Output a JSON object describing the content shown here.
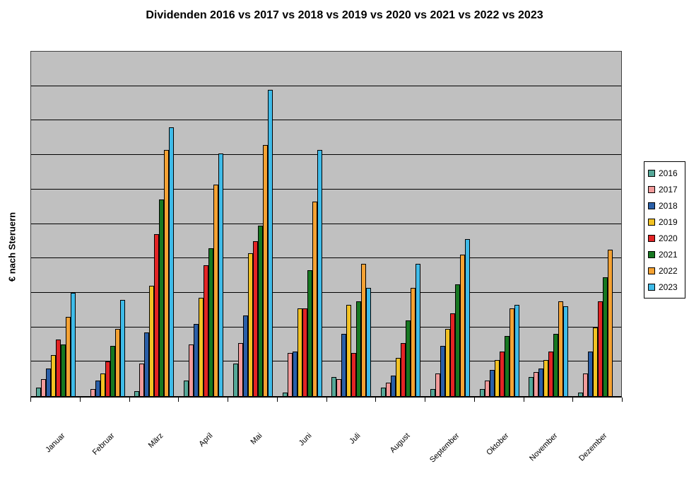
{
  "chart_data": {
    "type": "bar",
    "title": "Dividenden 2016 vs 2017 vs 2018 vs 2019 vs 2020 vs 2021 vs 2022 vs 2023",
    "ylabel": "€ nach Steruern",
    "xlabel": "",
    "categories": [
      "Januar",
      "Februar",
      "März",
      "April",
      "Mai",
      "Juni",
      "Juli",
      "August",
      "September",
      "Oktober",
      "November",
      "Dezember"
    ],
    "series": [
      {
        "name": "2016",
        "color": "#55a898",
        "values": [
          2.5,
          0,
          1.5,
          4.5,
          9.5,
          1,
          5.5,
          2.5,
          2,
          2,
          5.5,
          1
        ]
      },
      {
        "name": "2017",
        "color": "#f29b9b",
        "values": [
          5,
          2,
          9.5,
          15,
          15.5,
          12.5,
          5,
          4,
          6.5,
          4.5,
          7,
          6.5
        ]
      },
      {
        "name": "2018",
        "color": "#2a5fa8",
        "values": [
          8,
          4.5,
          18.5,
          21,
          23.5,
          13,
          18,
          6,
          14.5,
          7.5,
          8,
          13
        ]
      },
      {
        "name": "2019",
        "color": "#f2c223",
        "values": [
          12,
          6.5,
          32,
          28.5,
          41.5,
          25.5,
          26.5,
          11,
          19.5,
          10.5,
          10.5,
          20
        ]
      },
      {
        "name": "2020",
        "color": "#e32425",
        "values": [
          16.5,
          10,
          47,
          38,
          45,
          25.5,
          12.5,
          15.5,
          24,
          13,
          13,
          27.5
        ]
      },
      {
        "name": "2021",
        "color": "#177821",
        "values": [
          15,
          14.5,
          57,
          43,
          49.5,
          36.5,
          27.5,
          22,
          32.5,
          17.5,
          18,
          34.5
        ]
      },
      {
        "name": "2022",
        "color": "#f5a233",
        "values": [
          23,
          19.5,
          71.5,
          61.5,
          73,
          56.5,
          38.5,
          31.5,
          41,
          25.5,
          27.5,
          42.5
        ]
      },
      {
        "name": "2023",
        "color": "#3fbbe8",
        "values": [
          30,
          28,
          78,
          70.5,
          89,
          71.5,
          31.5,
          38.5,
          45.5,
          26.5,
          26,
          0
        ]
      }
    ],
    "ylim": [
      0,
      100
    ],
    "gridline_step": 10,
    "y_tick_labels_visible": false,
    "grid": "horizontal",
    "plot_background": "#c0c0c0",
    "legend_position": "right"
  }
}
